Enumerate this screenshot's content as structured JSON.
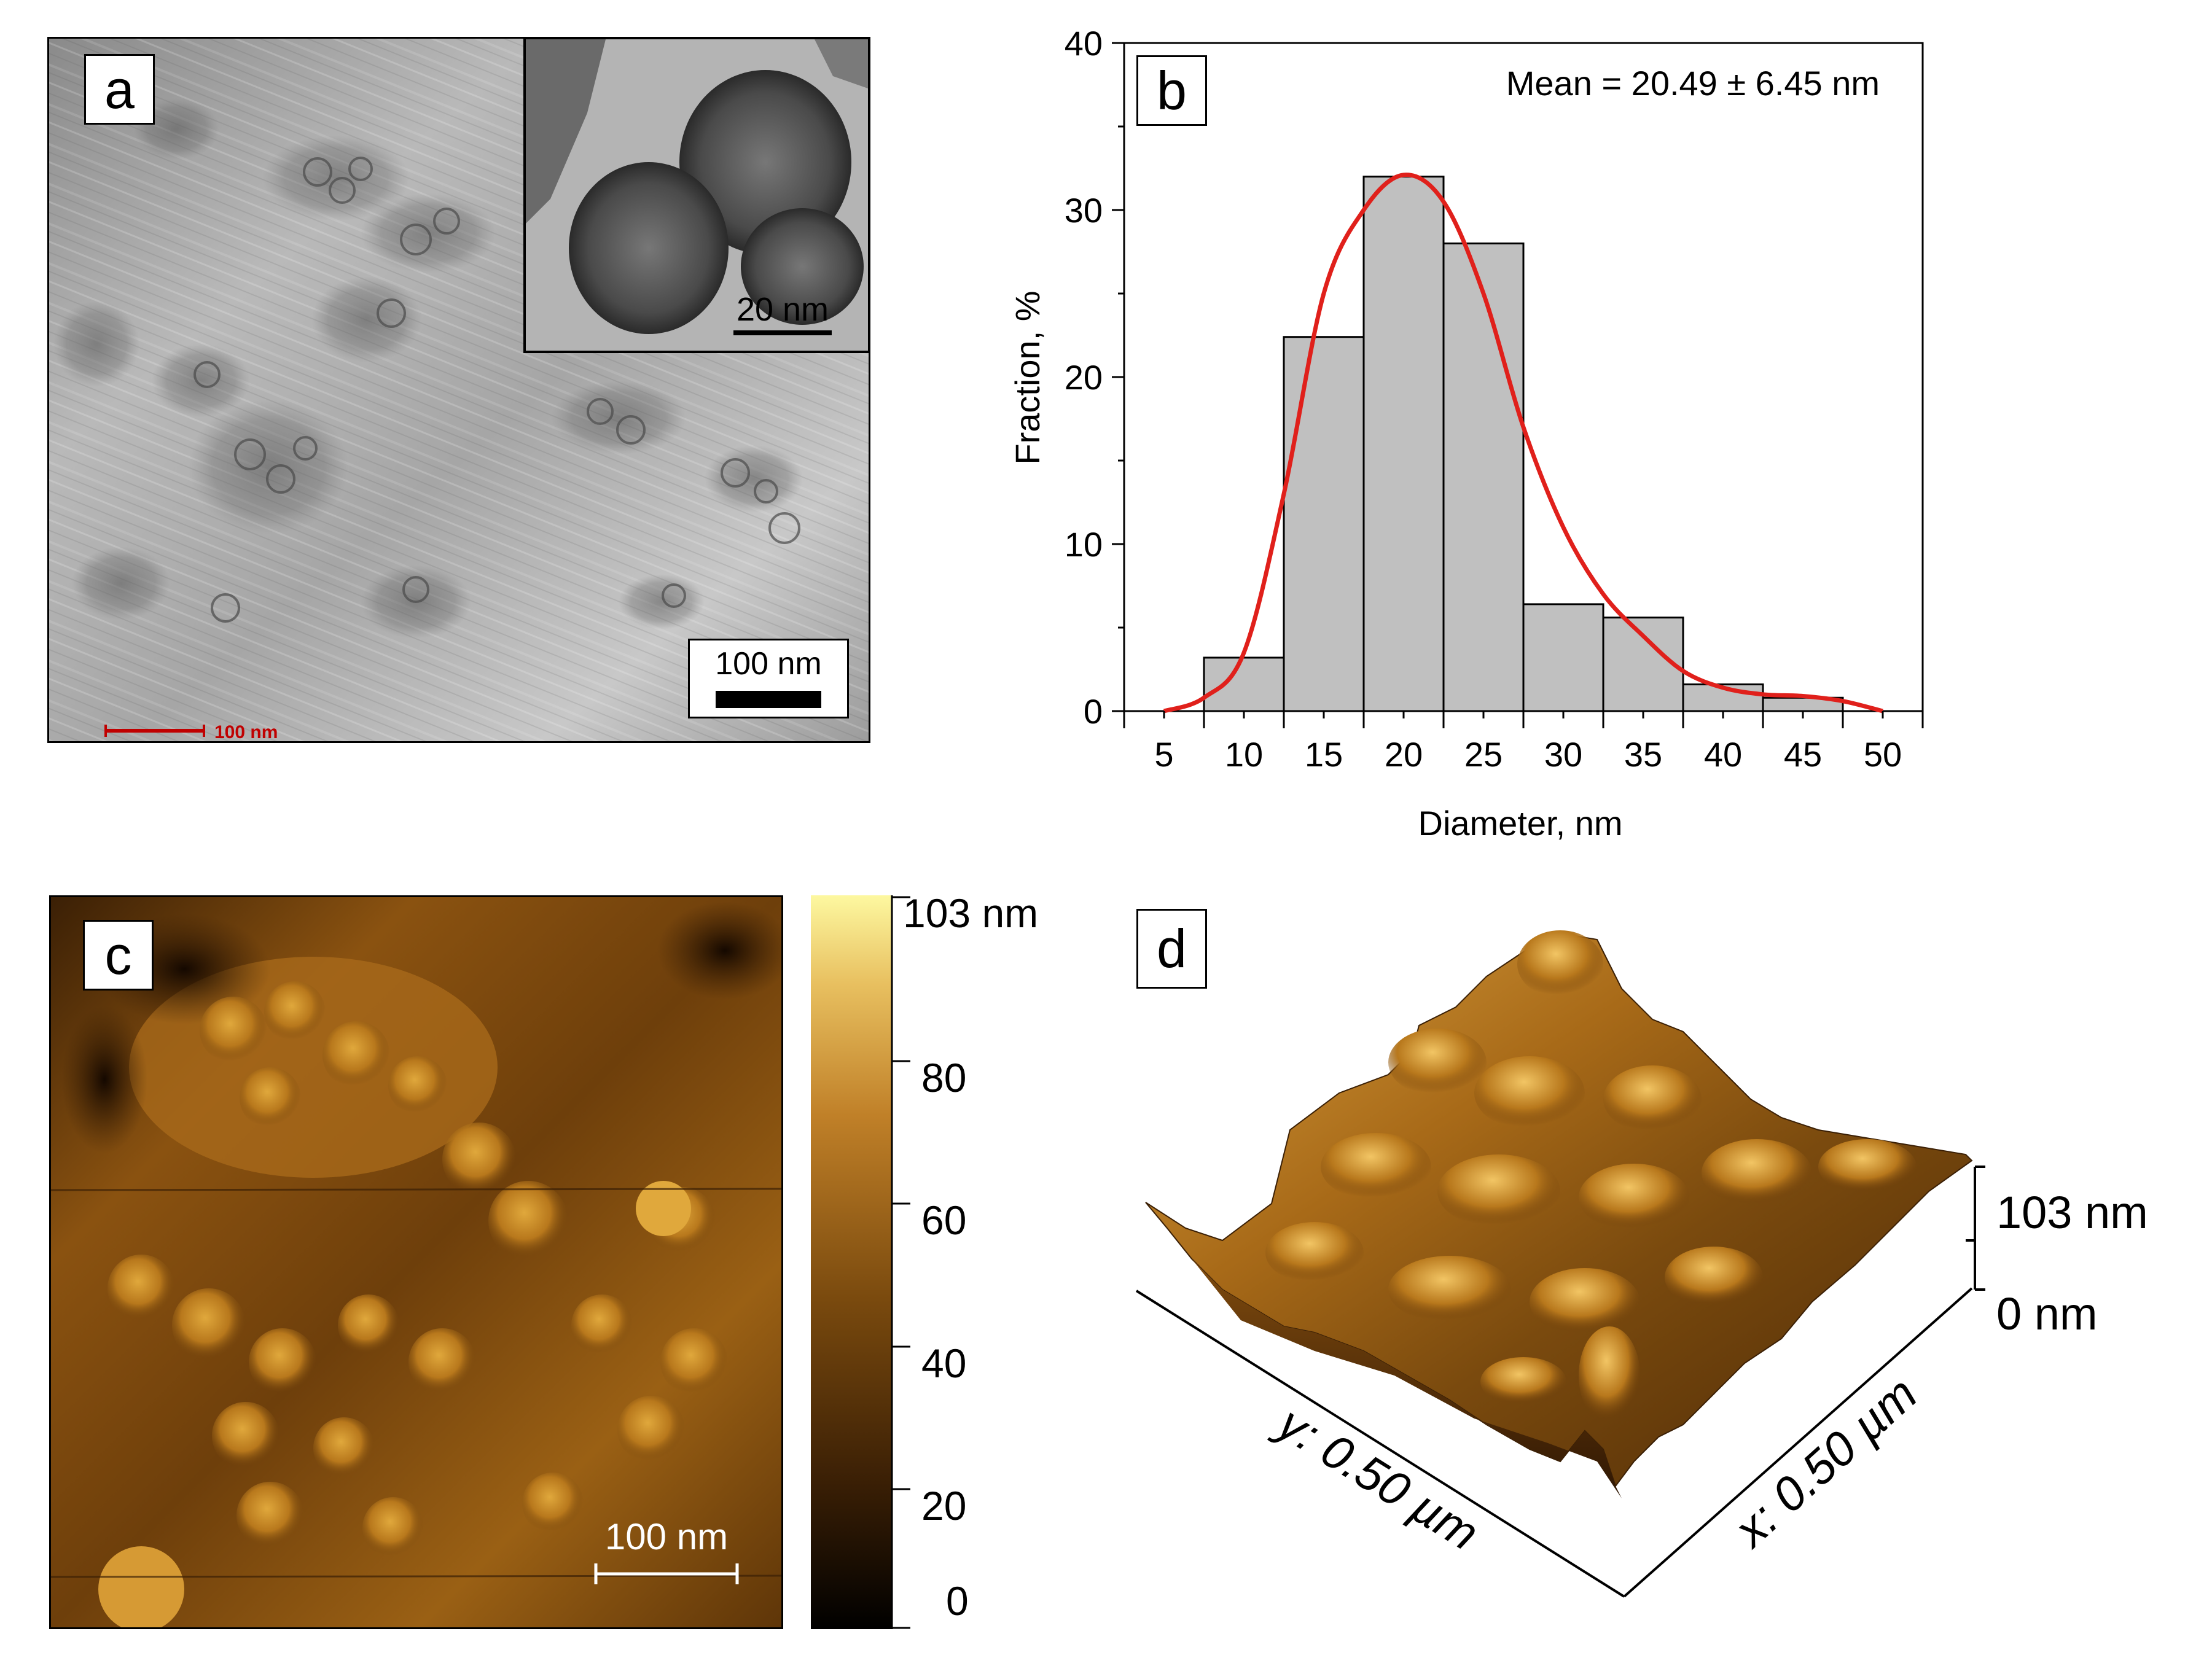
{
  "figure": {
    "panel_a": {
      "label": "a",
      "scalebar_label": "100 nm",
      "inset_scalebar_label": "20 nm",
      "embedded_red_scale": "100 nm"
    },
    "panel_b": {
      "label": "b"
    },
    "panel_c": {
      "label": "c",
      "scalebar_label": "100 nm",
      "colorbar_labels": [
        "103 nm",
        "80",
        "60",
        "40",
        "20",
        "0"
      ]
    },
    "panel_d": {
      "label": "d",
      "z_top_label": "103 nm",
      "z_bottom_label": "0 nm",
      "x_axis_label": "x: 0.50 µm",
      "y_axis_label": "y: 0.50 µm"
    }
  },
  "chart_data": {
    "type": "bar",
    "title": "",
    "annotation": "Mean = 20.49 ± 6.45 nm",
    "xlabel": "Diameter, nm",
    "ylabel": "Fraction, %",
    "xlim": [
      2.5,
      52.5
    ],
    "ylim": [
      0,
      40
    ],
    "xticks": [
      5,
      10,
      15,
      20,
      25,
      30,
      35,
      40,
      45,
      50
    ],
    "yticks": [
      0,
      10,
      20,
      30,
      40
    ],
    "bins": [
      {
        "from": 7.5,
        "to": 12.5,
        "value": 3.2
      },
      {
        "from": 12.5,
        "to": 17.5,
        "value": 22.4
      },
      {
        "from": 17.5,
        "to": 22.5,
        "value": 32.0
      },
      {
        "from": 22.5,
        "to": 27.5,
        "value": 28.0
      },
      {
        "from": 27.5,
        "to": 32.5,
        "value": 6.4
      },
      {
        "from": 32.5,
        "to": 37.5,
        "value": 5.6
      },
      {
        "from": 37.5,
        "to": 42.5,
        "value": 1.6
      },
      {
        "from": 42.5,
        "to": 47.5,
        "value": 0.8
      }
    ],
    "fit_curve": {
      "color": "#e0201b",
      "x": [
        5,
        7.5,
        10,
        12.5,
        15,
        17.5,
        20,
        22.5,
        25,
        27.5,
        30,
        32.5,
        35,
        37.5,
        40,
        42.5,
        45,
        47.5,
        50
      ],
      "y": [
        0,
        0.8,
        3.5,
        13,
        25,
        30,
        32.1,
        30.5,
        25,
        17,
        11,
        7,
        4.5,
        2.4,
        1.4,
        1.0,
        0.9,
        0.6,
        0
      ]
    },
    "bar_color": "#c0c0c0"
  }
}
